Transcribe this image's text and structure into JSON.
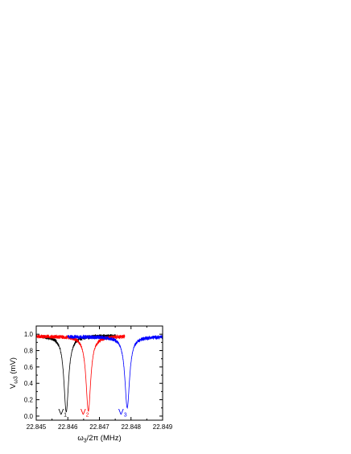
{
  "chart_data": {
    "type": "line",
    "title": "",
    "xlabel": {
      "main": "ω",
      "sub": "3",
      "rest": "/2π (MHz)"
    },
    "ylabel": {
      "main": "V",
      "sub": "ω3",
      "rest": " (mV)"
    },
    "xlim": [
      22.845,
      22.849
    ],
    "ylim": [
      -0.05,
      1.1
    ],
    "xticks": [
      22.845,
      22.846,
      22.847,
      22.848,
      22.849
    ],
    "xtick_labels": [
      "22.845",
      "22.846",
      "22.847",
      "22.848",
      "22.849"
    ],
    "yticks": [
      0.0,
      0.2,
      0.4,
      0.6,
      0.8,
      1.0
    ],
    "ytick_labels": [
      "0.0",
      "0.2",
      "0.4",
      "0.6",
      "0.8",
      "1.0"
    ],
    "grid": false,
    "legend": "none",
    "series": [
      {
        "label": {
          "main": "V",
          "sub": "1"
        },
        "color": "#000000",
        "x_range": [
          22.8452,
          22.8475
        ],
        "baseline": 0.98,
        "dip_center": 22.84595,
        "dip_min": 0.05,
        "dip_width": 9e-05
      },
      {
        "label": {
          "main": "V",
          "sub": "2"
        },
        "color": "#ff0000",
        "x_range": [
          22.845,
          22.8478
        ],
        "baseline": 0.975,
        "dip_center": 22.84665,
        "dip_min": 0.06,
        "dip_width": 9e-05
      },
      {
        "label": {
          "main": "V",
          "sub": "3"
        },
        "color": "#0000ff",
        "x_range": [
          22.846,
          22.849
        ],
        "baseline": 0.97,
        "dip_center": 22.84788,
        "dip_min": 0.1,
        "dip_width": 9e-05
      }
    ],
    "annotations": [
      {
        "series": 0,
        "x": 22.8457,
        "y": 0.02
      },
      {
        "series": 1,
        "x": 22.8464,
        "y": 0.02
      },
      {
        "series": 2,
        "x": 22.8476,
        "y": 0.02
      }
    ]
  }
}
